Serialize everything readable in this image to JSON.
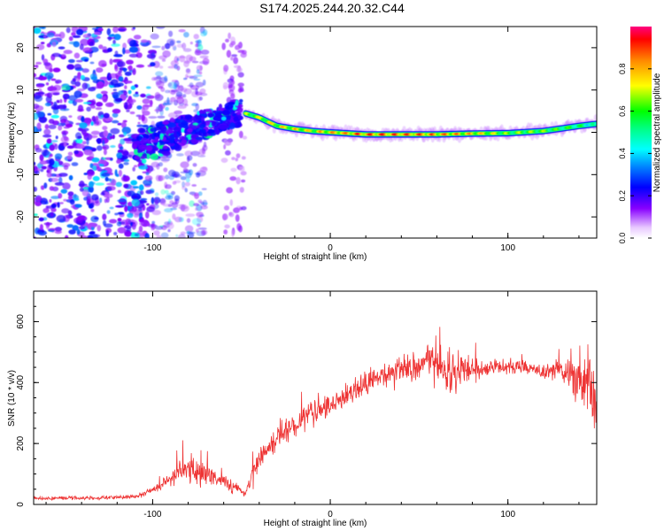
{
  "figure_title": "S174.2025.244.20.32.C44",
  "chart_data": [
    {
      "type": "heatmap",
      "title": "S174.2025.244.20.32.C44",
      "xlabel": "Height of straight line (km)",
      "ylabel": "Frequency (Hz)",
      "xlim": [
        -167,
        150
      ],
      "ylim": [
        -25,
        25
      ],
      "x_ticks": [
        -100,
        0,
        100
      ],
      "y_ticks": [
        -20,
        -10,
        0,
        10,
        20
      ],
      "x_tick_labels": [
        "-100",
        "0",
        "100"
      ],
      "y_tick_labels": [
        "-20",
        "-10",
        "0",
        "10",
        "20"
      ],
      "colorbar": {
        "label": "Normalized spectral amplitude",
        "range": [
          0,
          1
        ],
        "ticks": [
          0.0,
          0.2,
          0.4,
          0.6,
          0.8
        ],
        "tick_labels": [
          "0.0",
          "0.2",
          "0.4",
          "0.6",
          "0.8"
        ],
        "colormap": "rainbow (white, violet, blue, cyan, green, yellow, red, magenta)"
      },
      "ridge": {
        "description": "narrow high-amplitude frequency ridge",
        "x": [
          -48,
          -40,
          -30,
          -20,
          -10,
          0,
          20,
          40,
          60,
          80,
          100,
          120,
          140,
          150
        ],
        "frequency": [
          4.5,
          3.5,
          1.5,
          0.8,
          0.3,
          0,
          -0.5,
          -0.5,
          -0.5,
          -0.3,
          -0.2,
          0.3,
          1.5,
          2
        ],
        "amplitude": [
          0.7,
          0.75,
          0.8,
          0.8,
          0.8,
          0.85,
          0.95,
          0.95,
          0.9,
          0.85,
          0.7,
          0.7,
          0.6,
          0.5
        ]
      },
      "scatter_region": {
        "description": "diffuse low-amplitude scattered energy",
        "x_range": [
          -167,
          -100
        ],
        "frequency_range": [
          -25,
          25
        ],
        "amplitude_range": [
          0.1,
          0.35
        ]
      },
      "cluster_region": {
        "description": "blue/cyan cluster rising toward the ridge",
        "x_range": [
          -110,
          -50
        ],
        "frequency_start": [
          -8,
          0
        ],
        "frequency_end": [
          2,
          8
        ],
        "amplitude_range": [
          0.15,
          0.6
        ]
      }
    },
    {
      "type": "line",
      "xlabel": "Height of straight line (km)",
      "ylabel": "SNR (10 * v/v)",
      "xlim": [
        -167,
        150
      ],
      "ylim": [
        0,
        700
      ],
      "x_ticks": [
        -100,
        0,
        100
      ],
      "y_ticks": [
        0,
        200,
        400,
        600
      ],
      "x_tick_labels": [
        "-100",
        "0",
        "100"
      ],
      "y_tick_labels": [
        "0",
        "200",
        "400",
        "600"
      ],
      "series": [
        {
          "name": "SNR",
          "color": "#ee3333",
          "envelope": {
            "x": [
              -167,
              -140,
              -110,
              -95,
              -85,
              -75,
              -62,
              -55,
              -48,
              -45,
              -40,
              -30,
              -20,
              -10,
              0,
              10,
              20,
              30,
              40,
              50,
              55,
              60,
              65,
              70,
              80,
              90,
              100,
              110,
              120,
              130,
              135,
              140,
              145,
              150
            ],
            "mean": [
              20,
              20,
              25,
              60,
              110,
              110,
              80,
              60,
              35,
              80,
              150,
              220,
              260,
              290,
              320,
              360,
              400,
              420,
              440,
              450,
              480,
              470,
              430,
              430,
              440,
              450,
              450,
              450,
              440,
              440,
              430,
              420,
              400,
              300
            ],
            "spread": [
              8,
              8,
              10,
              25,
              60,
              60,
              40,
              35,
              15,
              40,
              50,
              60,
              60,
              60,
              60,
              60,
              60,
              60,
              60,
              60,
              80,
              120,
              110,
              90,
              60,
              40,
              35,
              35,
              40,
              50,
              90,
              130,
              170,
              200
            ]
          }
        }
      ]
    }
  ]
}
